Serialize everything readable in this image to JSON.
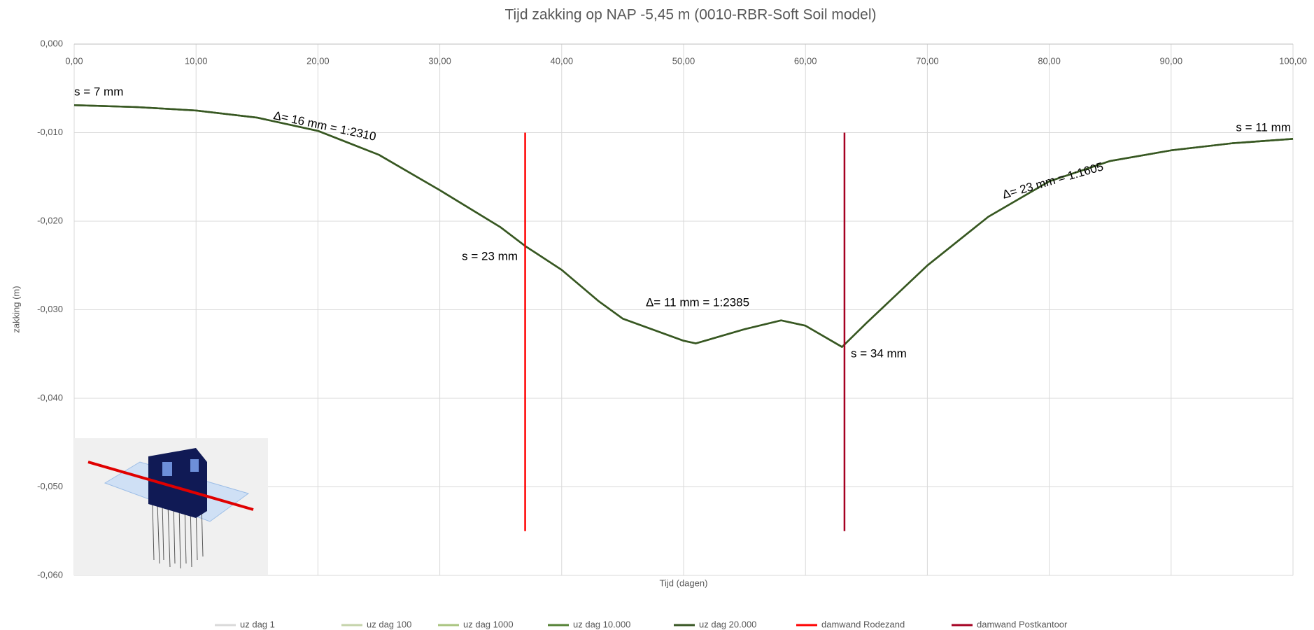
{
  "chart_data": {
    "type": "line",
    "title": "Tijd zakking op NAP -5,45 m (0010-RBR-Soft Soil model)",
    "x_label": "Tijd (dagen)",
    "y_label": "zakking (m)",
    "xlim": [
      0,
      100
    ],
    "xticks": [
      {
        "value": 0,
        "label": "0,00"
      },
      {
        "value": 10,
        "label": "10,00"
      },
      {
        "value": 20,
        "label": "20,00"
      },
      {
        "value": 30,
        "label": "30,00"
      },
      {
        "value": 40,
        "label": "40,00"
      },
      {
        "value": 50,
        "label": "50,00"
      },
      {
        "value": 60,
        "label": "60,00"
      },
      {
        "value": 70,
        "label": "70,00"
      },
      {
        "value": 80,
        "label": "80,00"
      },
      {
        "value": 90,
        "label": "90,00"
      },
      {
        "value": 100,
        "label": "100,00"
      }
    ],
    "ylim": [
      -0.06,
      0
    ],
    "yticks": [
      {
        "value": 0,
        "label": "0,000"
      },
      {
        "value": -0.01,
        "label": "-0,010"
      },
      {
        "value": -0.02,
        "label": "-0,020"
      },
      {
        "value": -0.03,
        "label": "-0,030"
      },
      {
        "value": -0.04,
        "label": "-0,040"
      },
      {
        "value": -0.05,
        "label": "-0,050"
      },
      {
        "value": -0.06,
        "label": "-0,060"
      }
    ],
    "grid": true,
    "legend": "bottom",
    "series": [
      {
        "name": "uz dag 1",
        "color": "#d9d9d9",
        "x": [
          0,
          5,
          10,
          15,
          20,
          25,
          30,
          35,
          37,
          40,
          43,
          45,
          50,
          51,
          55,
          58,
          60,
          63,
          65,
          70,
          75,
          80,
          85,
          90,
          95,
          100
        ],
        "values": [
          -0.0069,
          -0.0071,
          -0.0075,
          -0.0083,
          -0.0098,
          -0.0125,
          -0.0165,
          -0.0207,
          -0.0228,
          -0.0255,
          -0.029,
          -0.031,
          -0.0335,
          -0.0338,
          -0.0322,
          -0.0312,
          -0.0318,
          -0.0342,
          -0.0315,
          -0.025,
          -0.0195,
          -0.0155,
          -0.0132,
          -0.012,
          -0.0112,
          -0.0107
        ]
      },
      {
        "name": "uz dag 100",
        "color": "#c4d3aa",
        "x": [
          0,
          5,
          10,
          15,
          20,
          25,
          30,
          35,
          37,
          40,
          43,
          45,
          50,
          51,
          55,
          58,
          60,
          63,
          65,
          70,
          75,
          80,
          85,
          90,
          95,
          100
        ],
        "values": [
          -0.0069,
          -0.0071,
          -0.0075,
          -0.0083,
          -0.0098,
          -0.0125,
          -0.0165,
          -0.0207,
          -0.0228,
          -0.0255,
          -0.029,
          -0.031,
          -0.0335,
          -0.0338,
          -0.0322,
          -0.0312,
          -0.0318,
          -0.0342,
          -0.0315,
          -0.025,
          -0.0195,
          -0.0155,
          -0.0132,
          -0.012,
          -0.0112,
          -0.0107
        ]
      },
      {
        "name": "uz dag 1000",
        "color": "#a9c47f",
        "x": [
          0,
          5,
          10,
          15,
          20,
          25,
          30,
          35,
          37,
          40,
          43,
          45,
          50,
          51,
          55,
          58,
          60,
          63,
          65,
          70,
          75,
          80,
          85,
          90,
          95,
          100
        ],
        "values": [
          -0.0069,
          -0.0071,
          -0.0075,
          -0.0083,
          -0.0098,
          -0.0125,
          -0.0165,
          -0.0207,
          -0.0228,
          -0.0255,
          -0.029,
          -0.031,
          -0.0335,
          -0.0338,
          -0.0322,
          -0.0312,
          -0.0318,
          -0.0342,
          -0.0315,
          -0.025,
          -0.0195,
          -0.0155,
          -0.0132,
          -0.012,
          -0.0112,
          -0.0107
        ]
      },
      {
        "name": "uz dag 10.000",
        "color": "#548235",
        "x": [
          0,
          5,
          10,
          15,
          20,
          25,
          30,
          35,
          37,
          40,
          43,
          45,
          50,
          51,
          55,
          58,
          60,
          63,
          65,
          70,
          75,
          80,
          85,
          90,
          95,
          100
        ],
        "values": [
          -0.0069,
          -0.0071,
          -0.0075,
          -0.0083,
          -0.0098,
          -0.0125,
          -0.0165,
          -0.0207,
          -0.0228,
          -0.0255,
          -0.029,
          -0.031,
          -0.0335,
          -0.0338,
          -0.0322,
          -0.0312,
          -0.0318,
          -0.0342,
          -0.0315,
          -0.025,
          -0.0195,
          -0.0155,
          -0.0132,
          -0.012,
          -0.0112,
          -0.0107
        ]
      },
      {
        "name": "uz dag 20.000",
        "color": "#375623",
        "x": [
          0,
          5,
          10,
          15,
          20,
          25,
          30,
          35,
          37,
          40,
          43,
          45,
          50,
          51,
          55,
          58,
          60,
          63,
          65,
          70,
          75,
          80,
          85,
          90,
          95,
          100
        ],
        "values": [
          -0.0069,
          -0.0071,
          -0.0075,
          -0.0083,
          -0.0098,
          -0.0125,
          -0.0165,
          -0.0207,
          -0.0228,
          -0.0255,
          -0.029,
          -0.031,
          -0.0335,
          -0.0338,
          -0.0322,
          -0.0312,
          -0.0318,
          -0.0342,
          -0.0315,
          -0.025,
          -0.0195,
          -0.0155,
          -0.0132,
          -0.012,
          -0.0112,
          -0.0107
        ]
      },
      {
        "name": "damwand Rodezand",
        "color": "#ff0000",
        "x": [
          37,
          37
        ],
        "values": [
          -0.01,
          -0.055
        ]
      },
      {
        "name": "damwand Postkantoor",
        "color": "#a50021",
        "x": [
          63.2,
          63.2
        ],
        "values": [
          -0.01,
          -0.055
        ]
      }
    ],
    "annotations": [
      "s = 7 mm",
      "Δ= 16 mm = 1:2310",
      "s = 23 mm",
      "Δ= 11 mm = 1:2385",
      "s = 34 mm",
      "Δ= 23 mm = 1:1605",
      "s = 11 mm"
    ]
  }
}
